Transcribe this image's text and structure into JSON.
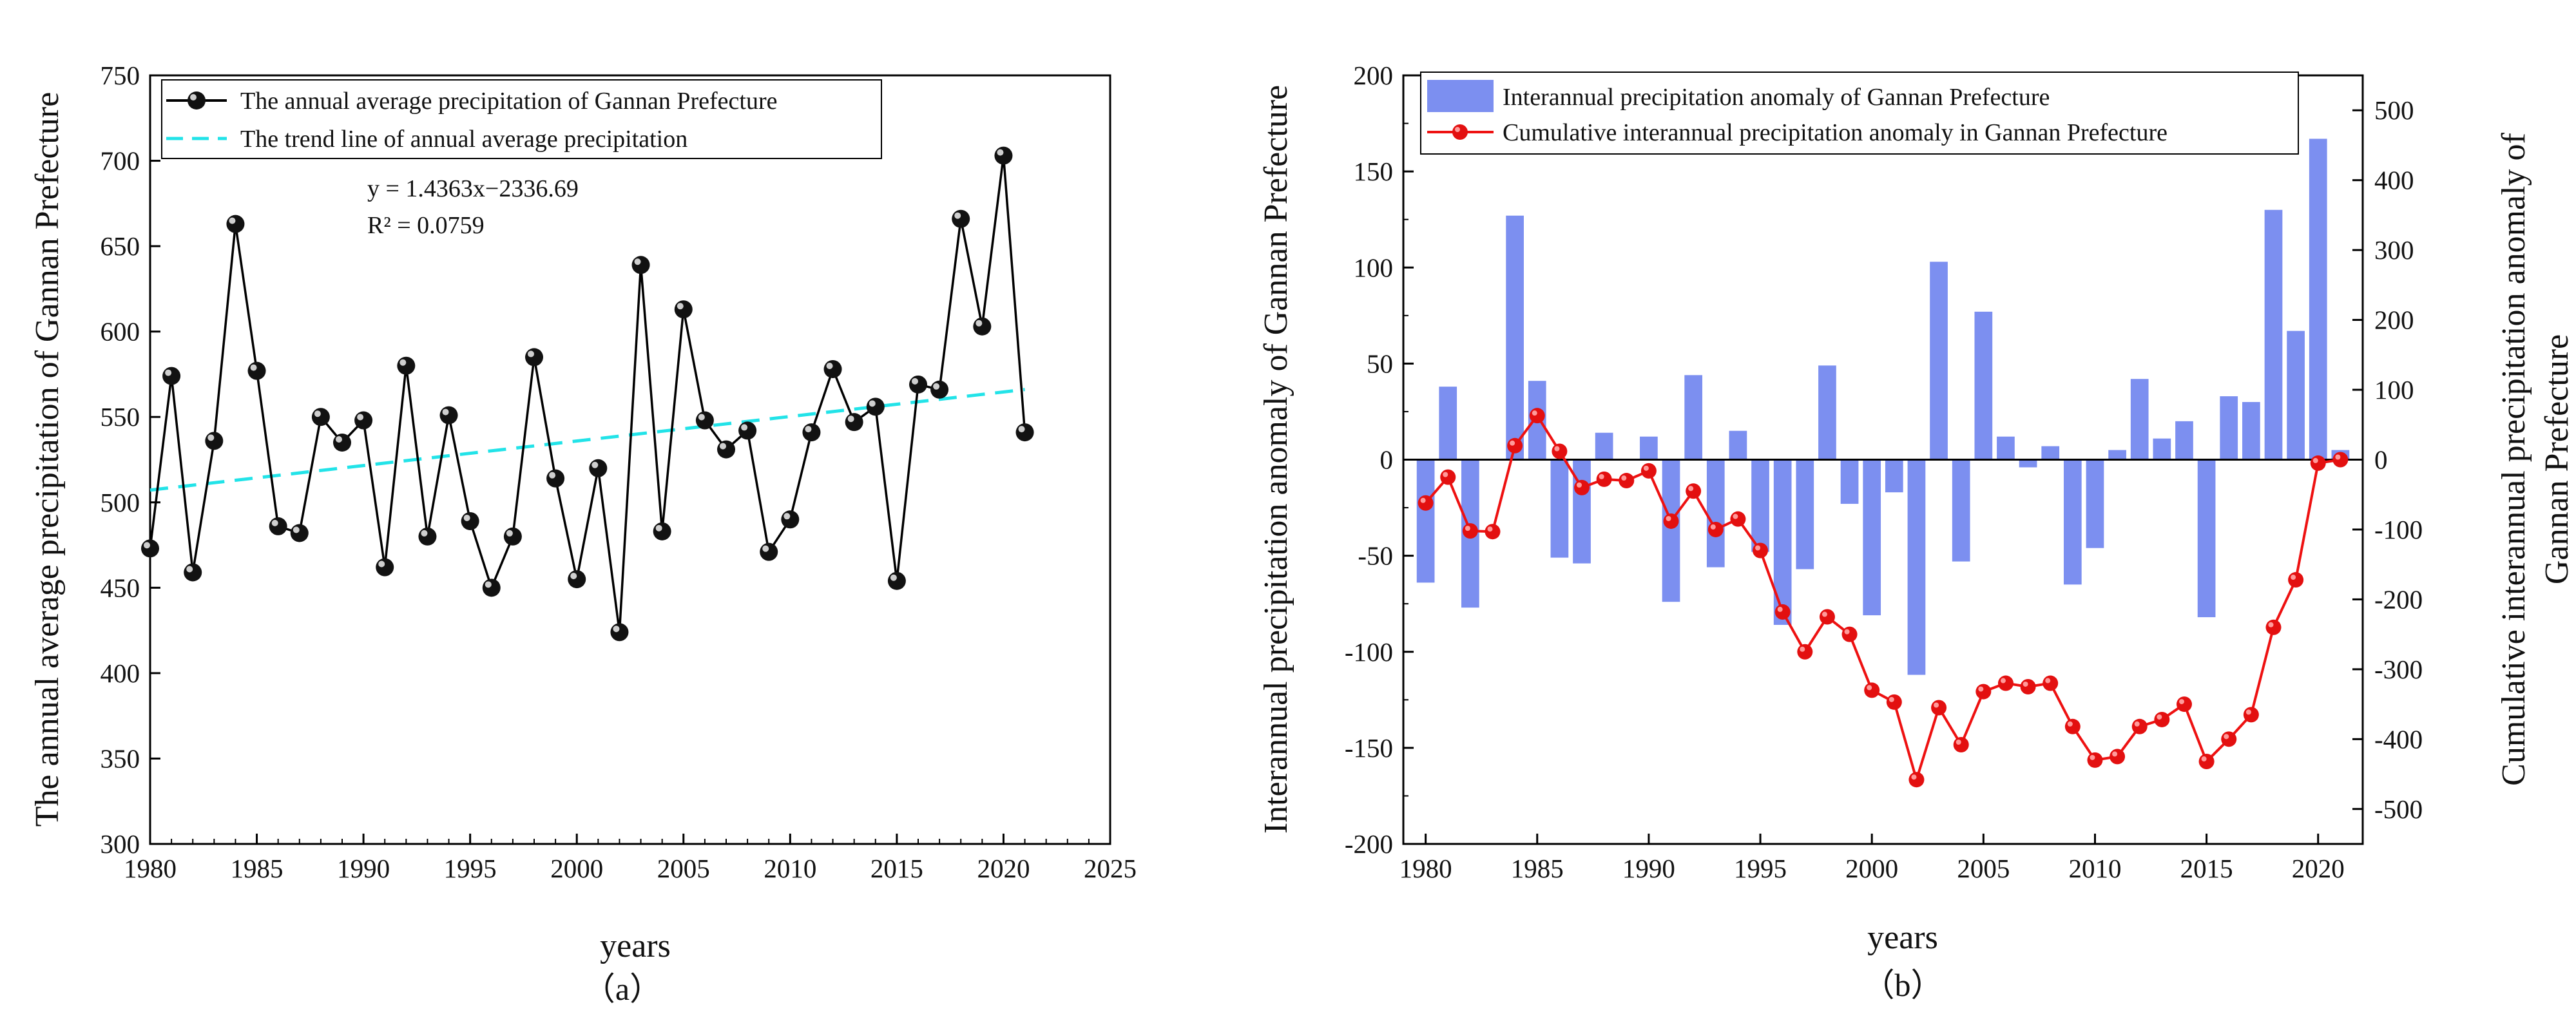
{
  "chart_data": [
    {
      "type": "line",
      "panel_caption": "（a）",
      "xlabel": "years",
      "ylabel": "The annual average precipitation of Gannan Prefecture",
      "xlim": [
        1980,
        2025
      ],
      "ylim": [
        300,
        750
      ],
      "xticks": [
        1980,
        1985,
        1990,
        1995,
        2000,
        2005,
        2010,
        2015,
        2020,
        2025
      ],
      "yticks": [
        300,
        350,
        400,
        450,
        500,
        550,
        600,
        650,
        700,
        750
      ],
      "x": [
        1980,
        1981,
        1982,
        1983,
        1984,
        1985,
        1986,
        1987,
        1988,
        1989,
        1990,
        1991,
        1992,
        1993,
        1994,
        1995,
        1996,
        1997,
        1998,
        1999,
        2000,
        2001,
        2002,
        2003,
        2004,
        2005,
        2006,
        2007,
        2008,
        2009,
        2010,
        2011,
        2012,
        2013,
        2014,
        2015,
        2016,
        2017,
        2018,
        2019,
        2020,
        2021
      ],
      "series": [
        {
          "name": "The annual average precipitation of Gannan Prefecture",
          "values": [
            473,
            574,
            459,
            536,
            663,
            577,
            486,
            482,
            550,
            535,
            548,
            462,
            580,
            480,
            551,
            489,
            450,
            480,
            585,
            514,
            455,
            520,
            424,
            639,
            483,
            613,
            548,
            531,
            542,
            471,
            490,
            541,
            578,
            547,
            556,
            454,
            569,
            566,
            666,
            603,
            703,
            541
          ],
          "color": "#000000"
        },
        {
          "name": "The trend line of annual average precipitation",
          "kind": "trend",
          "slope": 1.4363,
          "intercept": -2336.69,
          "x_range": [
            1980,
            2021
          ],
          "color": "#22e3e8"
        }
      ],
      "annotations": [
        "y = 1.4363x−2336.69",
        "R² = 0.0759"
      ],
      "legend": "top-left"
    },
    {
      "type": "bar",
      "panel_caption": "（b）",
      "xlabel": "years",
      "ylabel": "Interannual precipitation anomaly of Gannan Prefecture",
      "ylabel_right": [
        "Cumulative interannual precipitation anomaly of",
        "Gannan Prefecture"
      ],
      "xlim": [
        1979,
        2022
      ],
      "ylim": [
        -200,
        200
      ],
      "ylim_right": [
        -550,
        550
      ],
      "xticks": [
        1980,
        1985,
        1990,
        1995,
        2000,
        2005,
        2010,
        2015,
        2020
      ],
      "yticks": [
        -200,
        -150,
        -100,
        -50,
        0,
        50,
        100,
        150,
        200
      ],
      "yticks_right": [
        -500,
        -400,
        -300,
        -200,
        -100,
        0,
        100,
        200,
        300,
        400,
        500
      ],
      "x": [
        1980,
        1981,
        1982,
        1983,
        1984,
        1985,
        1986,
        1987,
        1988,
        1989,
        1990,
        1991,
        1992,
        1993,
        1994,
        1995,
        1996,
        1997,
        1998,
        1999,
        2000,
        2001,
        2002,
        2003,
        2004,
        2005,
        2006,
        2007,
        2008,
        2009,
        2010,
        2011,
        2012,
        2013,
        2014,
        2015,
        2016,
        2017,
        2018,
        2019,
        2020,
        2021
      ],
      "series": [
        {
          "name": "Interannual precipitation anomaly of Gannan Prefecture",
          "kind": "bar",
          "axis": "left",
          "values": [
            -64,
            38,
            -77,
            0,
            127,
            41,
            -51,
            -54,
            14,
            0,
            12,
            -74,
            44,
            -56,
            15,
            -48,
            -86,
            -57,
            49,
            -23,
            -81,
            -17,
            -112,
            103,
            -53,
            77,
            12,
            -4,
            7,
            -65,
            -46,
            5,
            42,
            11,
            20,
            -82,
            33,
            30,
            130,
            67,
            167,
            5
          ],
          "color": "#7c8ff0"
        },
        {
          "name": "Cumulative interannual precipitation anomaly in Gannan Prefecture",
          "kind": "line",
          "axis": "right",
          "values": [
            -62,
            -25,
            -102,
            -103,
            20,
            63,
            12,
            -40,
            -28,
            -30,
            -16,
            -88,
            -45,
            -100,
            -85,
            -130,
            -218,
            -275,
            -225,
            -250,
            -330,
            -347,
            -458,
            -355,
            -408,
            -332,
            -320,
            -325,
            -320,
            -382,
            -430,
            -425,
            -382,
            -372,
            -350,
            -432,
            -400,
            -365,
            -240,
            -172,
            -5,
            0
          ],
          "color": "#ee1111"
        }
      ],
      "legend": "top-left"
    }
  ]
}
